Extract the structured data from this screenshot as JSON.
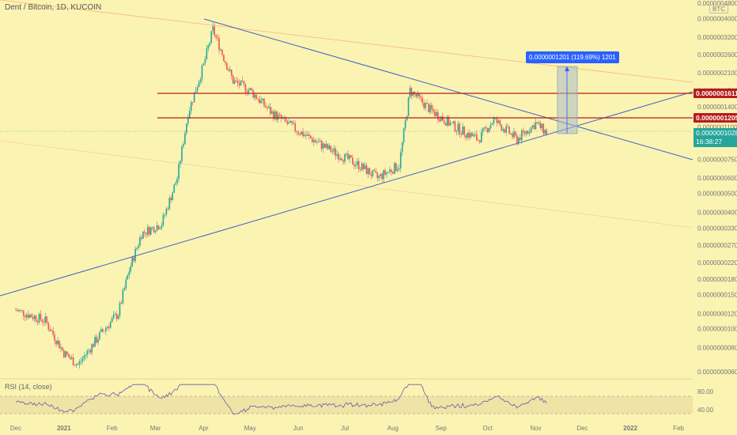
{
  "header": {
    "title": "Dent / Bitcoin, 1D, KUCOIN",
    "unit": "BTC"
  },
  "rsi": {
    "title": "RSI (14, close)",
    "levels": [
      "80.00",
      "40.00"
    ]
  },
  "price_tags": {
    "resistance_high": "0.0000001611",
    "resistance_low": "0.0000001205",
    "current_price": "0.0000001028",
    "countdown": "16:38:27"
  },
  "measure": {
    "label": "0.0000001201 (119.69%) 1201"
  },
  "colors": {
    "background": "#fbf3b2",
    "up": "#26a69a",
    "down": "#ef5350",
    "trendline": "#3f62c8",
    "resistance": "#b71c1c",
    "measure": "#2962ff"
  },
  "chart_data": {
    "type": "candlestick",
    "y_scale": "log",
    "y_ticks": [
      "0.0000004800",
      "0.0000004000",
      "0.0000003200",
      "0.0000002600",
      "0.0000002100",
      "0.0000001700",
      "0.0000001400",
      "0.0000001100",
      "0.0000000900",
      "0.0000000750",
      "0.0000000600",
      "0.0000000500",
      "0.0000000400",
      "0.0000000330",
      "0.0000000270",
      "0.0000000220",
      "0.0000000180",
      "0.0000000150",
      "0.0000000120",
      "0.0000000100",
      "0.0000000080",
      "0.0000000060"
    ],
    "x_ticks": [
      "Dec",
      "2021",
      "Feb",
      "Mar",
      "Apr",
      "May",
      "Jun",
      "Jul",
      "Aug",
      "Sep",
      "Oct",
      "Nov",
      "Dec",
      "2022",
      "Feb"
    ],
    "price_path": [
      {
        "date": "2020-12-01",
        "value": 1.25e-08
      },
      {
        "date": "2020-12-20",
        "value": 1.1e-08
      },
      {
        "date": "2021-01-01",
        "value": 7.5e-09
      },
      {
        "date": "2021-01-10",
        "value": 6.5e-09
      },
      {
        "date": "2021-01-25",
        "value": 9.5e-09
      },
      {
        "date": "2021-02-05",
        "value": 1.2e-08
      },
      {
        "date": "2021-02-12",
        "value": 2e-08
      },
      {
        "date": "2021-02-20",
        "value": 3.1e-08
      },
      {
        "date": "2021-03-05",
        "value": 3.5e-08
      },
      {
        "date": "2021-03-15",
        "value": 6e-08
      },
      {
        "date": "2021-03-22",
        "value": 1.3e-07
      },
      {
        "date": "2021-04-01",
        "value": 2.3e-07
      },
      {
        "date": "2021-04-07",
        "value": 3.5e-07
      },
      {
        "date": "2021-04-20",
        "value": 1.9e-07
      },
      {
        "date": "2021-05-01",
        "value": 1.7e-07
      },
      {
        "date": "2021-05-15",
        "value": 1.3e-07
      },
      {
        "date": "2021-06-01",
        "value": 1.05e-07
      },
      {
        "date": "2021-06-20",
        "value": 8.5e-08
      },
      {
        "date": "2021-07-10",
        "value": 7e-08
      },
      {
        "date": "2021-07-22",
        "value": 6e-08
      },
      {
        "date": "2021-08-05",
        "value": 7e-08
      },
      {
        "date": "2021-08-12",
        "value": 1.7e-07
      },
      {
        "date": "2021-08-25",
        "value": 1.35e-07
      },
      {
        "date": "2021-09-10",
        "value": 1.1e-07
      },
      {
        "date": "2021-09-25",
        "value": 9.5e-08
      },
      {
        "date": "2021-10-05",
        "value": 1.2e-07
      },
      {
        "date": "2021-10-20",
        "value": 9.5e-08
      },
      {
        "date": "2021-11-01",
        "value": 1.15e-07
      },
      {
        "date": "2021-11-08",
        "value": 1.028e-07
      }
    ],
    "resistance_levels": [
      1.611e-07,
      1.205e-07
    ],
    "current_price": 1.028e-07,
    "measure_target": 2.229e-07,
    "rsi_levels": [
      80,
      40
    ]
  }
}
